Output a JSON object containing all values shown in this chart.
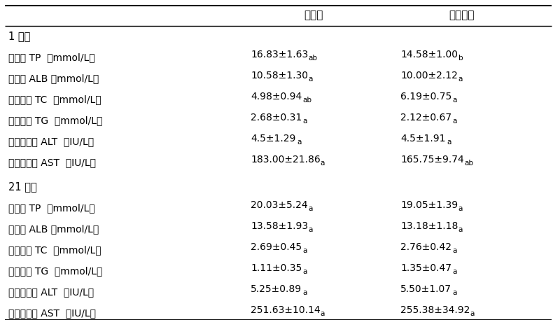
{
  "col_headers": [
    "对照组",
    "低蛋白组"
  ],
  "section1_header": "1 日龄",
  "section2_header": "21 日龄",
  "rows_section1": [
    {
      "label": "总蛋白 TP  （mmol/L）",
      "col1": "16.83±1.63",
      "col1_sup": "ab",
      "col2": "14.58±1.00",
      "col2_sup": "b"
    },
    {
      "label": "白蛋白 ALB （mmol/L）",
      "col1": "10.58±1.30",
      "col1_sup": "a",
      "col2": "10.00±2.12",
      "col2_sup": "a"
    },
    {
      "label": "总胆固醇 TC  （mmol/L）",
      "col1": "4.98±0.94",
      "col1_sup": "ab",
      "col2": "6.19±0.75",
      "col2_sup": "a"
    },
    {
      "label": "甘油三酯 TG  （mmol/L）",
      "col1": "2.68±0.31",
      "col1_sup": "a",
      "col2": "2.12±0.67",
      "col2_sup": "a"
    },
    {
      "label": "谷丙转氨酶 ALT  （IU/L）",
      "col1": "4.5±1.29",
      "col1_sup": "a",
      "col2": "4.5±1.91",
      "col2_sup": "a"
    },
    {
      "label": "谷草转氨酶 AST  （IU/L）",
      "col1": "183.00±21.86",
      "col1_sup": "a",
      "col2": "165.75±9.74",
      "col2_sup": "ab"
    }
  ],
  "rows_section2": [
    {
      "label": "总蛋白 TP  （mmol/L）",
      "col1": "20.03±5.24",
      "col1_sup": "a",
      "col2": "19.05±1.39",
      "col2_sup": "a"
    },
    {
      "label": "白蛋白 ALB （mmol/L）",
      "col1": "13.58±1.93",
      "col1_sup": "a",
      "col2": "13.18±1.18",
      "col2_sup": "a"
    },
    {
      "label": "总胆固醇 TC  （mmol/L）",
      "col1": "2.69±0.45",
      "col1_sup": "a",
      "col2": "2.76±0.42",
      "col2_sup": "a"
    },
    {
      "label": "甘油三酯 TG  （mmol/L）",
      "col1": "1.11±0.35",
      "col1_sup": "a",
      "col2": "1.35±0.47",
      "col2_sup": "a"
    },
    {
      "label": "谷丙转氨酶 ALT  （IU/L）",
      "col1": "5.25±0.89",
      "col1_sup": "a",
      "col2": "5.50±1.07",
      "col2_sup": "a"
    },
    {
      "label": "谷草转氨酶 AST  （IU/L）",
      "col1": "251.63±10.14",
      "col1_sup": "a",
      "col2": "255.38±34.92",
      "col2_sup": "a"
    }
  ],
  "bg_color": "#ffffff",
  "text_color": "#000000",
  "line_color": "#000000",
  "font_size_header": 11,
  "font_size_body": 10,
  "font_size_section": 10.5,
  "font_size_sup": 7.5
}
